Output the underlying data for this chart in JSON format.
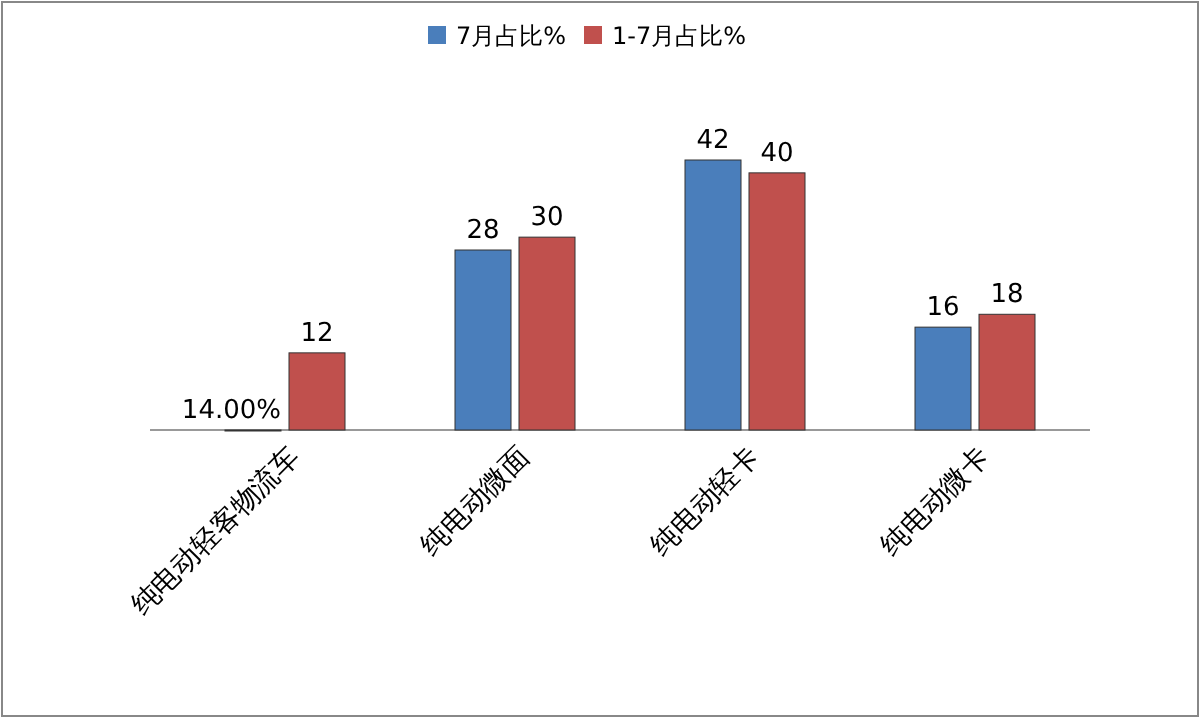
{
  "chart_data": {
    "type": "bar",
    "categories": [
      "纯电动轻客物流车",
      "纯电动微面",
      "纯电动轻卡",
      "纯电动微卡"
    ],
    "series": [
      {
        "name": "7月占比%",
        "color": "#4a7ebb",
        "values": [
          0,
          28,
          42,
          16
        ],
        "value_labels": [
          null,
          "28",
          "42",
          "16"
        ]
      },
      {
        "name": "1-7月占比%",
        "color": "#c0504d",
        "values": [
          12,
          30,
          40,
          18
        ],
        "value_labels": [
          "12",
          "30",
          "40",
          "18"
        ]
      }
    ],
    "annotations": [
      {
        "text": "14.00%",
        "x": "纯电动轻客物流车",
        "y": 0
      }
    ],
    "legend": "top"
  }
}
